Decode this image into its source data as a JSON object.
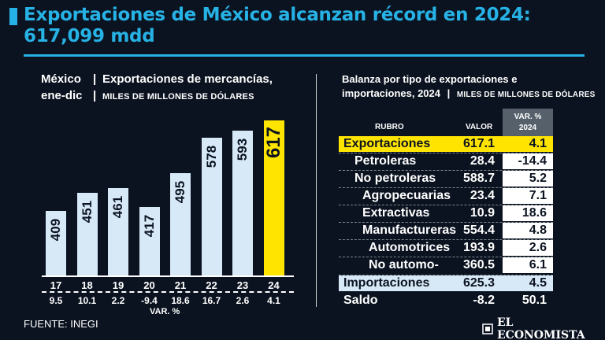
{
  "title": "Exportaciones de México alcanzan récord en 2024: 617,099 mdd",
  "left_panel": {
    "line1_a": "México",
    "line1_b": "Exportaciones de mercancías,",
    "line2_a": "ene-dic",
    "line2_b": "MILES DE MILLONES DE DÓLARES",
    "separator": "|"
  },
  "chart_data": {
    "type": "bar",
    "title": "Exportaciones de mercancías, ene-dic",
    "ylabel": "MILES DE MILLONES DE DÓLARES",
    "categories": [
      "17",
      "18",
      "19",
      "20",
      "21",
      "22",
      "23",
      "24"
    ],
    "values": [
      409,
      451,
      461,
      417,
      495,
      578,
      593,
      617
    ],
    "value_labels": [
      "409",
      "451",
      "461",
      "417",
      "495",
      "578",
      "593",
      "617"
    ],
    "var_pct": [
      "9.5",
      "10.1",
      "2.2",
      "-9.4",
      "18.6",
      "16.7",
      "2.6",
      "4.1"
    ],
    "var_label": "VAR. %",
    "highlight_index": 7,
    "bar_color": "#d7e8f7",
    "highlight_color": "#ffe400"
  },
  "right_panel": {
    "heading_line1": "Balanza por tipo de exportaciones e",
    "heading_line2": "importaciones, 2024",
    "separator": "|",
    "heading_units": "MILES DE MILLONES DE DÓLARES",
    "col_rubro": "RUBRO",
    "col_valor": "VALOR",
    "col_var_line1": "VAR. %",
    "col_var_line2": "2024",
    "rows": [
      {
        "name": "Exportaciones",
        "value": "617.1",
        "var": "4.1"
      },
      {
        "name": "Petroleras",
        "value": "28.4",
        "var": "-14.4"
      },
      {
        "name": "No petroleras",
        "value": "588.7",
        "var": "5.2"
      },
      {
        "name": "Agropecuarias",
        "value": "23.4",
        "var": "7.1"
      },
      {
        "name": "Extractivas",
        "value": "10.9",
        "var": "18.6"
      },
      {
        "name": "Manufactureras",
        "value": "554.4",
        "var": "4.8"
      },
      {
        "name": "Automotrices",
        "value": "193.9",
        "var": "2.6"
      },
      {
        "name": "No automo-",
        "value": "360.5",
        "var": "6.1"
      },
      {
        "name": "Importaciones",
        "value": "625.3",
        "var": "4.5"
      },
      {
        "name": "Saldo",
        "value": "-8.2",
        "var": "50.1"
      }
    ]
  },
  "footer": {
    "source": "FUENTE: INEGI",
    "logo_text": "EL ECONOMISTA",
    "logo_icon": "economista-mark-icon"
  },
  "colors": {
    "background": "#0b1320",
    "accent": "#27b2e6",
    "highlight": "#ffe400",
    "bar": "#d7e8f7"
  }
}
